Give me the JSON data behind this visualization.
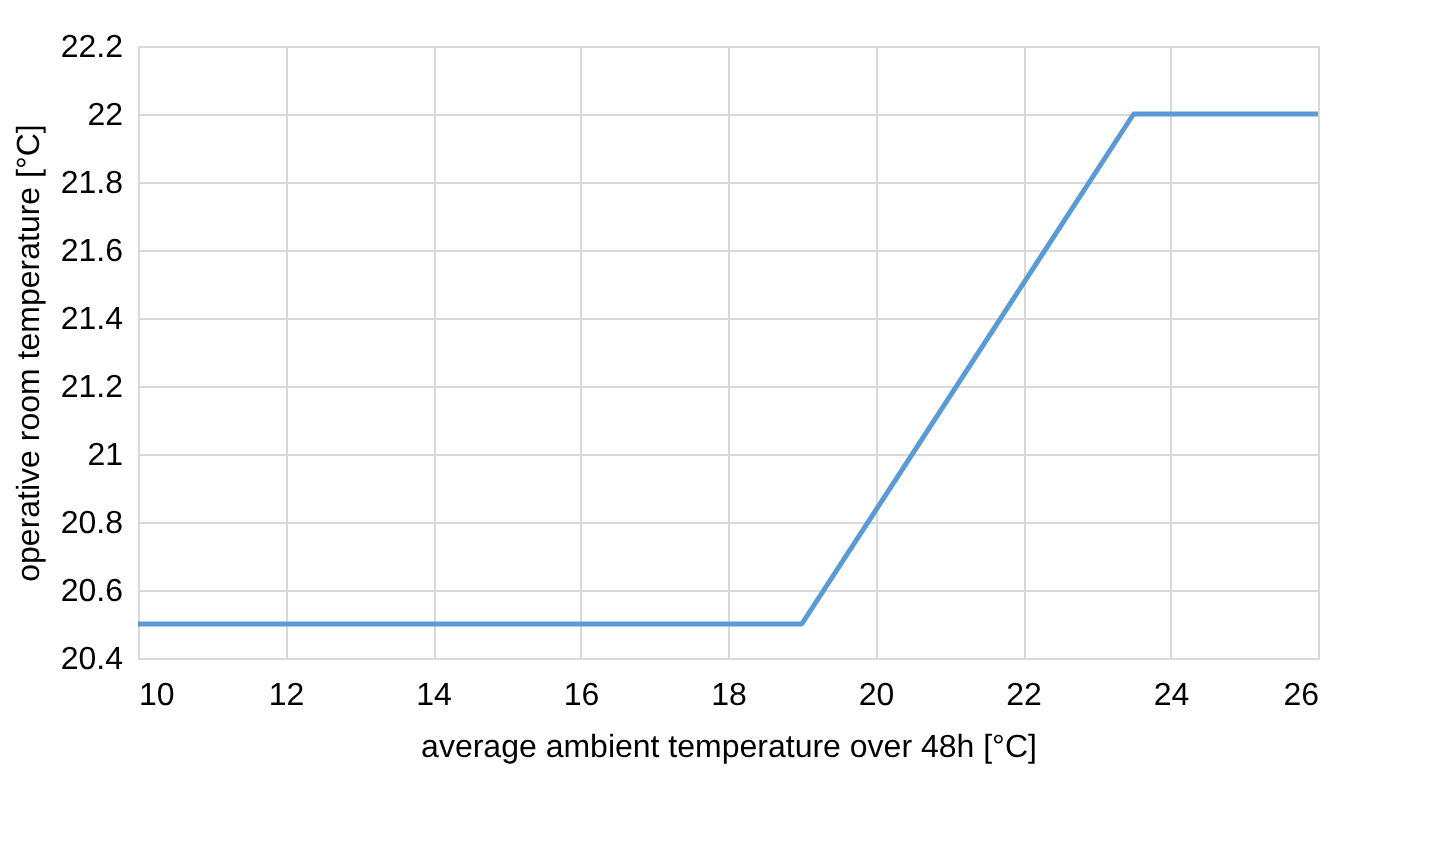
{
  "chart_data": {
    "type": "line",
    "xlabel": "average ambient temperature  over 48h  [°C]",
    "ylabel": "operative room  temperature  [°C]",
    "x": [
      10,
      19,
      23.5,
      26
    ],
    "series": [
      {
        "color": "#5b9bd5",
        "values": [
          20.5,
          20.5,
          22,
          22
        ]
      }
    ],
    "xlim": [
      10,
      26
    ],
    "xticks": [
      10,
      12,
      14,
      16,
      18,
      20,
      22,
      24,
      26
    ],
    "ylim": [
      20.4,
      22.2
    ],
    "yticks": [
      20.4,
      20.6,
      20.8,
      21,
      21.2,
      21.4,
      21.6,
      21.8,
      22,
      22.2
    ],
    "grid": true,
    "marker": "none",
    "line_style": "solid"
  }
}
